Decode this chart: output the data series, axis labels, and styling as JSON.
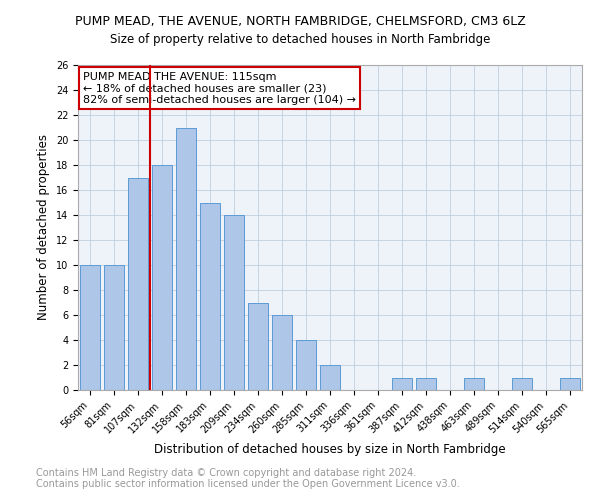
{
  "title": "PUMP MEAD, THE AVENUE, NORTH FAMBRIDGE, CHELMSFORD, CM3 6LZ",
  "subtitle": "Size of property relative to detached houses in North Fambridge",
  "xlabel": "Distribution of detached houses by size in North Fambridge",
  "ylabel": "Number of detached properties",
  "categories": [
    "56sqm",
    "81sqm",
    "107sqm",
    "132sqm",
    "158sqm",
    "183sqm",
    "209sqm",
    "234sqm",
    "260sqm",
    "285sqm",
    "311sqm",
    "336sqm",
    "361sqm",
    "387sqm",
    "412sqm",
    "438sqm",
    "463sqm",
    "489sqm",
    "514sqm",
    "540sqm",
    "565sqm"
  ],
  "values": [
    10,
    10,
    17,
    18,
    21,
    15,
    14,
    7,
    6,
    4,
    2,
    0,
    0,
    1,
    1,
    0,
    1,
    0,
    1,
    0,
    1
  ],
  "bar_color": "#aec6e8",
  "bar_edge_color": "#5b9bd5",
  "vline_color": "#cc0000",
  "annotation_text": "PUMP MEAD THE AVENUE: 115sqm\n← 18% of detached houses are smaller (23)\n82% of semi-detached houses are larger (104) →",
  "annotation_box_edge_color": "#cc0000",
  "ylim": [
    0,
    26
  ],
  "yticks": [
    0,
    2,
    4,
    6,
    8,
    10,
    12,
    14,
    16,
    18,
    20,
    22,
    24,
    26
  ],
  "footer_line1": "Contains HM Land Registry data © Crown copyright and database right 2024.",
  "footer_line2": "Contains public sector information licensed under the Open Government Licence v3.0.",
  "bg_color": "#eef2f9",
  "title_fontsize": 9,
  "subtitle_fontsize": 8.5,
  "ylabel_fontsize": 8.5,
  "xlabel_fontsize": 8.5,
  "tick_fontsize": 7,
  "annotation_fontsize": 8,
  "footer_fontsize": 7
}
